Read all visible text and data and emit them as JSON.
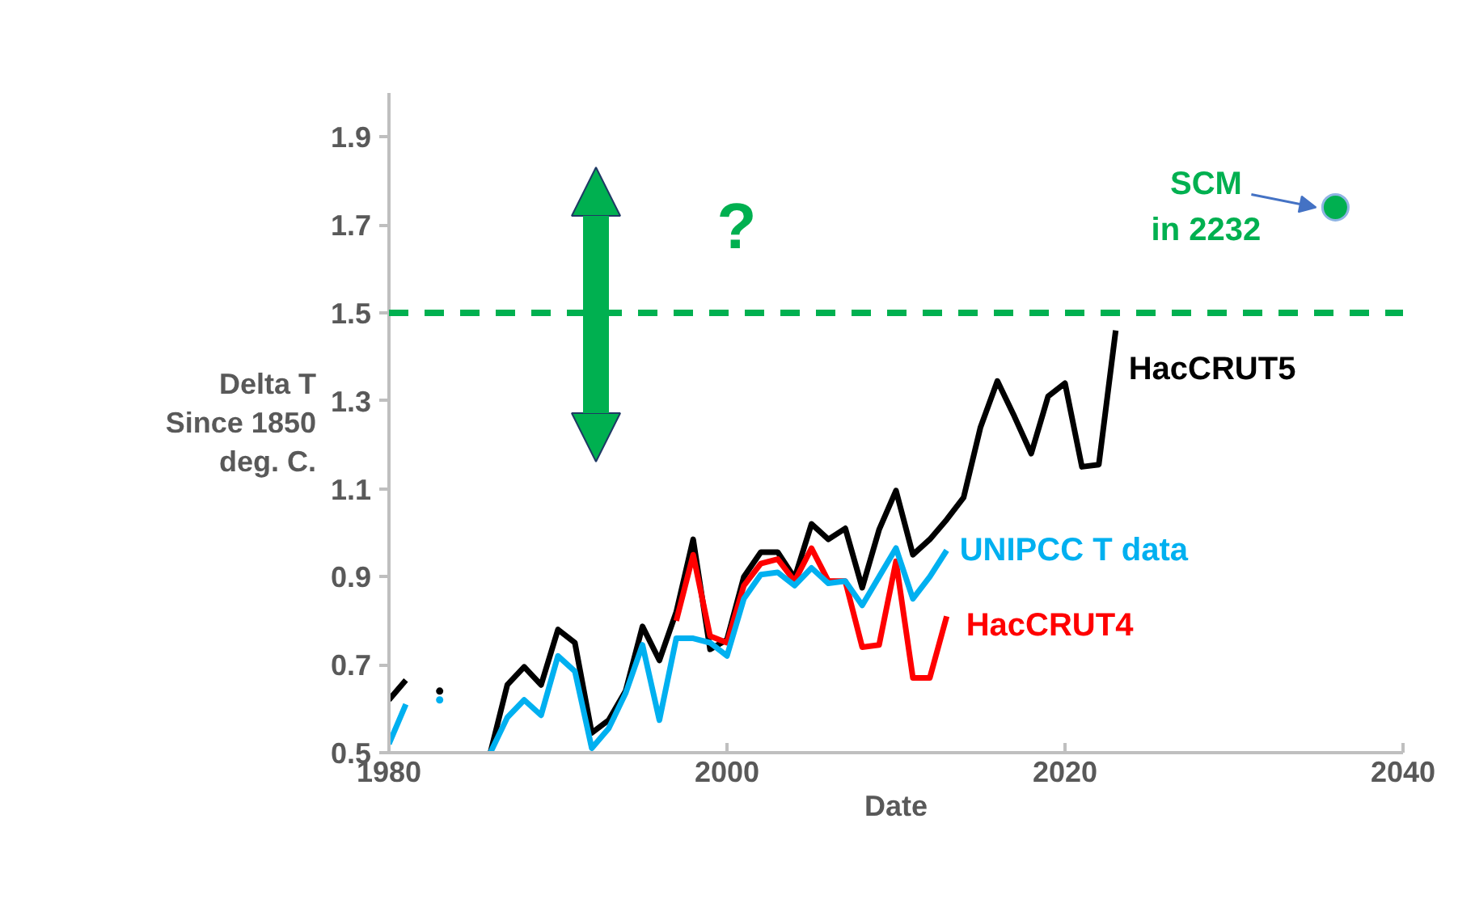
{
  "chart_data": {
    "type": "line",
    "xlabel": "Date",
    "ylabel": "Delta T\nSince 1850\ndeg. C.",
    "xlim": [
      1980,
      2040
    ],
    "xticks": [
      1980,
      2000,
      2020,
      2040
    ],
    "ylim": [
      0.5,
      2.0
    ],
    "yticks": [
      0.5,
      0.7,
      0.9,
      1.1,
      1.3,
      1.5,
      1.7,
      1.9
    ],
    "grid": false,
    "legend": false,
    "line_style": "solid",
    "marker": "none",
    "series": [
      {
        "name": "HacCRUT5",
        "color": "#000000",
        "x": [
          1980,
          1981,
          1982,
          1983,
          1984,
          1985,
          1986,
          1987,
          1988,
          1989,
          1990,
          1991,
          1992,
          1993,
          1994,
          1995,
          1996,
          1997,
          1998,
          1999,
          2000,
          2001,
          2002,
          2003,
          2004,
          2005,
          2006,
          2007,
          2008,
          2009,
          2010,
          2011,
          2012,
          2013,
          2014,
          2015,
          2016,
          2017,
          2018,
          2019,
          2020,
          2021,
          2022,
          2023
        ],
        "values": [
          0.62,
          0.665,
          null,
          0.64,
          null,
          null,
          0.5,
          0.654,
          0.695,
          0.654,
          0.78,
          0.75,
          0.545,
          0.574,
          0.64,
          0.787,
          0.71,
          0.82,
          0.985,
          0.735,
          0.757,
          0.9,
          0.956,
          0.956,
          0.897,
          1.02,
          0.985,
          1.01,
          0.875,
          1.007,
          1.096,
          0.95,
          0.985,
          1.03,
          1.08,
          1.24,
          1.345,
          1.265,
          1.18,
          1.31,
          1.34,
          1.15,
          1.155,
          1.46
        ]
      },
      {
        "name": "HacCRUT4",
        "color": "#ff0000",
        "x": [
          1997,
          1998,
          1999,
          2000,
          2001,
          2002,
          2003,
          2004,
          2005,
          2006,
          2007,
          2008,
          2009,
          2010,
          2011,
          2012,
          2013
        ],
        "values": [
          0.8,
          0.95,
          0.765,
          0.75,
          0.88,
          0.93,
          0.94,
          0.89,
          0.965,
          0.89,
          0.89,
          0.74,
          0.745,
          0.935,
          0.67,
          0.67,
          0.81
        ]
      },
      {
        "name": "UNIPCC T data",
        "color": "#00b0f0",
        "x": [
          1980,
          1981,
          1982,
          1983,
          1984,
          1985,
          1986,
          1987,
          1988,
          1989,
          1990,
          1991,
          1992,
          1993,
          1994,
          1995,
          1996,
          1997,
          1998,
          1999,
          2000,
          2001,
          2002,
          2003,
          2004,
          2005,
          2006,
          2007,
          2008,
          2009,
          2010,
          2011,
          2012,
          2013
        ],
        "values": [
          0.52,
          0.61,
          null,
          0.62,
          null,
          null,
          0.5,
          0.58,
          0.62,
          0.585,
          0.72,
          0.685,
          0.51,
          0.555,
          0.635,
          0.745,
          0.574,
          0.76,
          0.76,
          0.75,
          0.72,
          0.85,
          0.905,
          0.91,
          0.88,
          0.92,
          0.885,
          0.89,
          0.835,
          0.9,
          0.965,
          0.85,
          0.9,
          0.96
        ]
      },
      {
        "type": "scatter",
        "marker": "circle",
        "color": "#00b050",
        "x": [
          2036
        ],
        "values": [
          1.74
        ]
      }
    ],
    "ref_lines": [
      {
        "axis": "y",
        "value": 1.5,
        "color": "#00b050",
        "line_style": "dashed"
      }
    ],
    "annotations": [
      "?",
      {
        "text": "SCM\nin 2232",
        "x": 2036,
        "y": 1.74
      }
    ]
  }
}
